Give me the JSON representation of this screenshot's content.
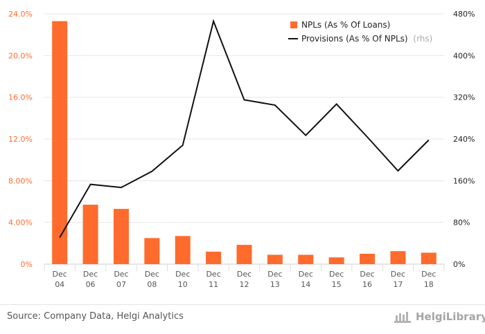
{
  "colors": {
    "bar": "#ff6b2c",
    "line": "#111111",
    "left_axis_text": "#ff6b2c",
    "right_axis_text": "#222222",
    "category_text": "#555555",
    "grid": "#e6e6e6",
    "rhs_note": "#aaaaaa"
  },
  "chart_data": {
    "type": "bar+line",
    "categories": [
      [
        "Dec",
        "04"
      ],
      [
        "Dec",
        "06"
      ],
      [
        "Dec",
        "07"
      ],
      [
        "Dec",
        "08"
      ],
      [
        "Dec",
        "10"
      ],
      [
        "Dec",
        "11"
      ],
      [
        "Dec",
        "12"
      ],
      [
        "Dec",
        "13"
      ],
      [
        "Dec",
        "14"
      ],
      [
        "Dec",
        "15"
      ],
      [
        "Dec",
        "16"
      ],
      [
        "Dec",
        "17"
      ],
      [
        "Dec",
        "18"
      ]
    ],
    "series": [
      {
        "name": "NPLs (As % Of Loans)",
        "type": "bar",
        "axis": "left",
        "values": [
          23.3,
          5.7,
          5.3,
          2.5,
          2.7,
          1.2,
          1.85,
          0.9,
          0.9,
          0.65,
          1.0,
          1.25,
          1.1
        ]
      },
      {
        "name": "Provisions (As % Of NPLs)",
        "name_note": "(rhs)",
        "type": "line",
        "axis": "right",
        "values": [
          51,
          153,
          147,
          178,
          228,
          466,
          315,
          305,
          247,
          307,
          244,
          179,
          238
        ]
      }
    ],
    "left_axis": {
      "min": 0,
      "max": 24,
      "ticks": [
        "0%",
        "4.00%",
        "8.00%",
        "12.0%",
        "16.0%",
        "20.0%",
        "24.0%"
      ]
    },
    "right_axis": {
      "min": 0,
      "max": 480,
      "ticks": [
        "0%",
        "80%",
        "160%",
        "240%",
        "320%",
        "400%",
        "480%"
      ]
    },
    "legend": [
      {
        "label": "NPLs (As % Of Loans)",
        "note": ""
      },
      {
        "label": "Provisions (As % Of NPLs)",
        "note": "(rhs)"
      }
    ],
    "legend_position": "top-right",
    "grid": true
  },
  "footer": {
    "source": "Source: Company Data, Helgi Analytics",
    "brand": "HelgiLibrary"
  }
}
